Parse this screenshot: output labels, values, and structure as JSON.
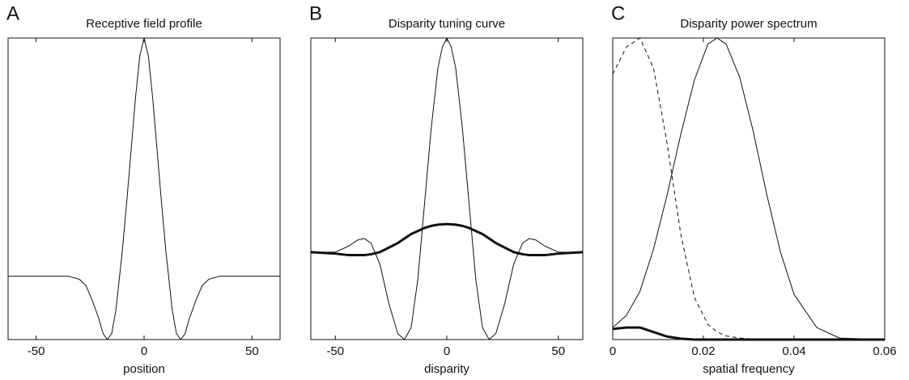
{
  "chart_data": [
    {
      "type": "line",
      "panel": "A",
      "title": "Receptive field profile",
      "xlabel": "position",
      "x": [
        -63,
        -35,
        -30,
        -27,
        -24,
        -21,
        -19,
        -17,
        -15,
        -13,
        -10,
        -8,
        -6,
        -4,
        -2,
        0,
        2,
        4,
        6,
        8,
        10,
        13,
        15,
        17,
        19,
        21,
        24,
        27,
        30,
        35,
        63
      ],
      "series": [
        {
          "color": "#111111",
          "width": 1,
          "dash": false,
          "values": [
            0.21,
            0.21,
            0.2,
            0.18,
            0.13,
            0.07,
            0.02,
            0,
            0.02,
            0.1,
            0.3,
            0.46,
            0.63,
            0.8,
            0.94,
            1,
            0.94,
            0.8,
            0.63,
            0.46,
            0.3,
            0.1,
            0.02,
            0,
            0.02,
            0.07,
            0.13,
            0.18,
            0.2,
            0.21,
            0.21
          ]
        }
      ],
      "xlim": [
        -63,
        63
      ],
      "xticks": [
        -50,
        0,
        50
      ],
      "ylim": [
        0,
        1
      ]
    },
    {
      "type": "line",
      "panel": "B",
      "title": "Disparity tuning curve",
      "xlabel": "disparity",
      "x": [
        -61,
        -50,
        -44,
        -40,
        -37,
        -34,
        -30,
        -26,
        -22,
        -19,
        -16,
        -13,
        -10,
        -7,
        -4,
        -2,
        0,
        2,
        4,
        7,
        10,
        13,
        16,
        19,
        22,
        26,
        30,
        34,
        37,
        40,
        44,
        50,
        61
      ],
      "series": [
        {
          "color": "#111111",
          "width": 1,
          "dash": false,
          "values": [
            0.29,
            0.29,
            0.31,
            0.33,
            0.335,
            0.32,
            0.25,
            0.12,
            0.02,
            0,
            0.04,
            0.2,
            0.45,
            0.7,
            0.9,
            0.97,
            1,
            0.97,
            0.9,
            0.7,
            0.45,
            0.2,
            0.04,
            0,
            0.02,
            0.12,
            0.25,
            0.32,
            0.335,
            0.33,
            0.31,
            0.29,
            0.29
          ]
        },
        {
          "color": "#111111",
          "width": 3,
          "dash": false,
          "values": [
            0.29,
            0.285,
            0.28,
            0.28,
            0.28,
            0.283,
            0.29,
            0.305,
            0.32,
            0.335,
            0.35,
            0.36,
            0.37,
            0.377,
            0.381,
            0.382,
            0.383,
            0.382,
            0.381,
            0.377,
            0.37,
            0.36,
            0.35,
            0.335,
            0.32,
            0.305,
            0.29,
            0.283,
            0.28,
            0.28,
            0.28,
            0.285,
            0.29
          ]
        }
      ],
      "xlim": [
        -61,
        61
      ],
      "xticks": [
        -50,
        0,
        50
      ],
      "ylim": [
        0,
        1
      ]
    },
    {
      "type": "line",
      "panel": "C",
      "title": "Disparity power spectrum",
      "xlabel": "spatial frequency",
      "x": [
        0,
        0.003,
        0.006,
        0.009,
        0.012,
        0.015,
        0.018,
        0.021,
        0.023,
        0.025,
        0.028,
        0.031,
        0.034,
        0.037,
        0.04,
        0.045,
        0.05,
        0.06
      ],
      "series": [
        {
          "color": "#111111",
          "width": 1,
          "dash": false,
          "values": [
            0.04,
            0.08,
            0.16,
            0.3,
            0.48,
            0.68,
            0.86,
            0.98,
            1,
            0.98,
            0.87,
            0.69,
            0.48,
            0.29,
            0.15,
            0.04,
            0.005,
            0
          ]
        },
        {
          "color": "#111111",
          "width": 1,
          "dash": true,
          "values": [
            0.88,
            0.97,
            1,
            0.9,
            0.65,
            0.35,
            0.14,
            0.05,
            0.025,
            0.012,
            0.005,
            0.002,
            0,
            0,
            0,
            0,
            0,
            0
          ]
        },
        {
          "color": "#111111",
          "width": 3,
          "dash": false,
          "values": [
            0.035,
            0.04,
            0.04,
            0.025,
            0.01,
            0.003,
            0,
            0,
            0,
            0,
            0,
            0,
            0,
            0,
            0,
            0,
            0,
            0
          ]
        }
      ],
      "xlim": [
        0,
        0.06
      ],
      "xticks": [
        0,
        0.02,
        0.04,
        0.06
      ],
      "ylim": [
        0,
        1
      ]
    }
  ]
}
